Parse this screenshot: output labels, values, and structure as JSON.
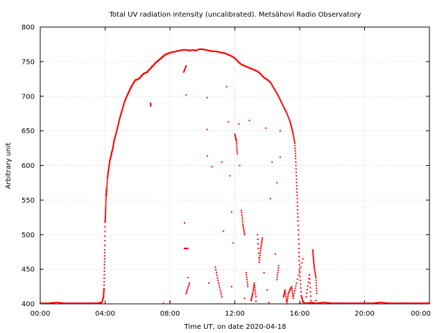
{
  "chart_data": {
    "type": "scatter",
    "title": "Total UV radiation intensity (uncalibrated). Metsähovi Radio Observatory",
    "xlabel": "Time UT, on date 2020-04-18",
    "ylabel": "Arbitrary unit",
    "xlim": [
      0,
      24
    ],
    "ylim": [
      400,
      800
    ],
    "grid": true,
    "x_ticks": [
      {
        "value": 0,
        "label": "00:00"
      },
      {
        "value": 4,
        "label": "04:00"
      },
      {
        "value": 8,
        "label": "08:00"
      },
      {
        "value": 12,
        "label": "12:00"
      },
      {
        "value": 16,
        "label": "16:00"
      },
      {
        "value": 20,
        "label": "20:00"
      },
      {
        "value": 24,
        "label": "00:00"
      }
    ],
    "y_ticks": [
      {
        "value": 400,
        "label": "400"
      },
      {
        "value": 450,
        "label": "450"
      },
      {
        "value": 500,
        "label": "500"
      },
      {
        "value": 550,
        "label": "550"
      },
      {
        "value": 600,
        "label": "600"
      },
      {
        "value": 650,
        "label": "650"
      },
      {
        "value": 700,
        "label": "700"
      },
      {
        "value": 750,
        "label": "750"
      },
      {
        "value": 800,
        "label": "800"
      }
    ],
    "series_color": "#ff0000",
    "series": [
      {
        "points": [
          [
            0.0,
            401
          ],
          [
            0.5,
            401
          ],
          [
            1.0,
            402
          ],
          [
            1.5,
            401
          ],
          [
            2.0,
            401
          ],
          [
            2.5,
            401
          ],
          [
            3.0,
            401
          ],
          [
            3.5,
            401
          ],
          [
            3.8,
            402
          ],
          [
            3.9,
            410
          ],
          [
            3.93,
            422
          ],
          [
            3.96,
            452
          ],
          [
            3.98,
            478
          ],
          [
            4.0,
            518
          ],
          [
            4.02,
            527
          ],
          [
            4.04,
            540
          ],
          [
            4.06,
            555
          ],
          [
            4.08,
            562
          ],
          [
            4.1,
            567
          ],
          [
            4.15,
            582
          ],
          [
            4.2,
            592
          ],
          [
            4.25,
            600
          ],
          [
            4.3,
            608
          ],
          [
            4.35,
            612
          ],
          [
            4.4,
            618
          ],
          [
            4.45,
            622
          ],
          [
            4.5,
            628
          ],
          [
            4.55,
            635
          ],
          [
            4.6,
            640
          ],
          [
            4.7,
            648
          ],
          [
            4.8,
            658
          ],
          [
            4.9,
            668
          ],
          [
            5.0,
            676
          ],
          [
            5.1,
            684
          ],
          [
            5.2,
            692
          ],
          [
            5.3,
            698
          ],
          [
            5.4,
            703
          ],
          [
            5.5,
            708
          ],
          [
            5.6,
            713
          ],
          [
            5.7,
            717
          ],
          [
            5.8,
            721
          ],
          [
            5.9,
            724
          ],
          [
            6.0,
            724
          ],
          [
            6.1,
            726
          ],
          [
            6.2,
            728
          ],
          [
            6.3,
            731
          ],
          [
            6.4,
            733
          ],
          [
            6.5,
            734
          ],
          [
            6.6,
            735
          ],
          [
            6.7,
            738
          ],
          [
            6.8,
            740
          ],
          [
            6.9,
            743
          ],
          [
            7.0,
            745
          ],
          [
            7.1,
            748
          ],
          [
            7.2,
            750
          ],
          [
            7.3,
            752
          ],
          [
            7.4,
            754
          ],
          [
            7.5,
            756
          ],
          [
            7.6,
            758
          ],
          [
            7.7,
            760
          ],
          [
            7.8,
            761
          ],
          [
            7.9,
            762
          ],
          [
            8.0,
            763
          ],
          [
            8.2,
            764
          ],
          [
            8.4,
            765
          ],
          [
            8.6,
            766
          ],
          [
            8.8,
            767
          ],
          [
            9.0,
            767
          ],
          [
            9.2,
            766
          ],
          [
            9.4,
            767
          ],
          [
            9.6,
            766
          ],
          [
            9.8,
            768
          ],
          [
            10.0,
            768
          ],
          [
            10.2,
            767
          ],
          [
            10.4,
            766
          ],
          [
            10.6,
            765
          ],
          [
            10.8,
            765
          ],
          [
            11.0,
            764
          ],
          [
            11.2,
            763
          ],
          [
            11.4,
            762
          ],
          [
            11.6,
            760
          ],
          [
            11.8,
            758
          ],
          [
            12.0,
            755
          ],
          [
            12.2,
            750
          ],
          [
            12.4,
            746
          ],
          [
            12.6,
            744
          ],
          [
            12.8,
            742
          ],
          [
            13.0,
            740
          ],
          [
            13.2,
            738
          ],
          [
            13.4,
            736
          ],
          [
            13.6,
            732
          ],
          [
            13.8,
            727
          ],
          [
            14.0,
            724
          ],
          [
            14.2,
            720
          ],
          [
            14.4,
            712
          ],
          [
            14.6,
            704
          ],
          [
            14.8,
            695
          ],
          [
            15.0,
            685
          ],
          [
            15.2,
            676
          ],
          [
            15.4,
            664
          ],
          [
            15.5,
            655
          ],
          [
            15.6,
            645
          ],
          [
            15.7,
            632
          ],
          [
            15.75,
            610
          ],
          [
            15.8,
            580
          ],
          [
            15.85,
            552
          ],
          [
            15.9,
            520
          ],
          [
            15.95,
            480
          ],
          [
            16.0,
            445
          ],
          [
            16.1,
            412
          ],
          [
            16.2,
            403
          ],
          [
            16.3,
            401
          ],
          [
            16.5,
            401
          ],
          [
            16.7,
            402
          ],
          [
            17.0,
            401
          ],
          [
            17.5,
            402
          ],
          [
            18.0,
            401
          ],
          [
            18.5,
            401
          ],
          [
            19.0,
            401
          ],
          [
            19.5,
            401
          ],
          [
            20.0,
            401
          ],
          [
            20.5,
            401
          ],
          [
            21.0,
            402
          ],
          [
            21.5,
            401
          ],
          [
            22.0,
            401
          ],
          [
            22.5,
            401
          ],
          [
            23.0,
            401
          ],
          [
            23.5,
            401
          ],
          [
            24.0,
            401
          ],
          [
            6.8,
            690
          ],
          [
            6.82,
            686
          ],
          [
            9.0,
            702
          ],
          [
            8.85,
            735
          ],
          [
            9.0,
            744
          ],
          [
            8.9,
            517
          ],
          [
            8.9,
            480
          ],
          [
            9.1,
            480
          ],
          [
            9.1,
            438
          ],
          [
            9.0,
            415
          ],
          [
            9.2,
            430
          ],
          [
            10.3,
            698
          ],
          [
            10.3,
            652
          ],
          [
            10.3,
            614
          ],
          [
            10.4,
            430
          ],
          [
            10.6,
            598
          ],
          [
            10.8,
            453
          ],
          [
            11.0,
            430
          ],
          [
            11.2,
            410
          ],
          [
            11.3,
            505
          ],
          [
            11.2,
            605
          ],
          [
            11.5,
            714
          ],
          [
            11.6,
            663
          ],
          [
            11.7,
            585
          ],
          [
            11.8,
            533
          ],
          [
            11.9,
            488
          ],
          [
            11.8,
            425
          ],
          [
            12.0,
            645
          ],
          [
            12.1,
            635
          ],
          [
            12.15,
            617
          ],
          [
            12.25,
            660
          ],
          [
            12.3,
            600
          ],
          [
            12.4,
            535
          ],
          [
            12.5,
            515
          ],
          [
            12.6,
            500
          ],
          [
            12.7,
            445
          ],
          [
            12.8,
            425
          ],
          [
            12.9,
            665
          ],
          [
            13.0,
            405
          ],
          [
            13.1,
            415
          ],
          [
            13.2,
            430
          ],
          [
            13.3,
            410
          ],
          [
            13.4,
            500
          ],
          [
            13.5,
            460
          ],
          [
            13.6,
            480
          ],
          [
            13.7,
            495
          ],
          [
            13.8,
            445
          ],
          [
            13.9,
            654
          ],
          [
            14.0,
            420
          ],
          [
            14.2,
            552
          ],
          [
            14.3,
            605
          ],
          [
            14.5,
            472
          ],
          [
            14.6,
            575
          ],
          [
            14.6,
            435
          ],
          [
            14.7,
            455
          ],
          [
            14.8,
            650
          ],
          [
            14.8,
            612
          ],
          [
            15.0,
            410
          ],
          [
            15.1,
            420
          ],
          [
            15.2,
            400
          ],
          [
            15.3,
            415
          ],
          [
            15.5,
            425
          ],
          [
            15.6,
            408
          ],
          [
            15.8,
            430
          ],
          [
            16.2,
            465
          ],
          [
            16.4,
            410
          ],
          [
            16.6,
            442
          ],
          [
            16.7,
            405
          ],
          [
            16.8,
            478
          ],
          [
            16.85,
            465
          ],
          [
            16.9,
            452
          ],
          [
            17.0,
            438
          ],
          [
            17.05,
            415
          ],
          [
            17.0,
            405
          ],
          [
            8.0,
            403
          ],
          [
            7.6,
            401
          ],
          [
            12.6,
            408
          ],
          [
            13.3,
            404
          ],
          [
            14.1,
            402
          ],
          [
            16.05,
            401
          ]
        ]
      }
    ]
  }
}
